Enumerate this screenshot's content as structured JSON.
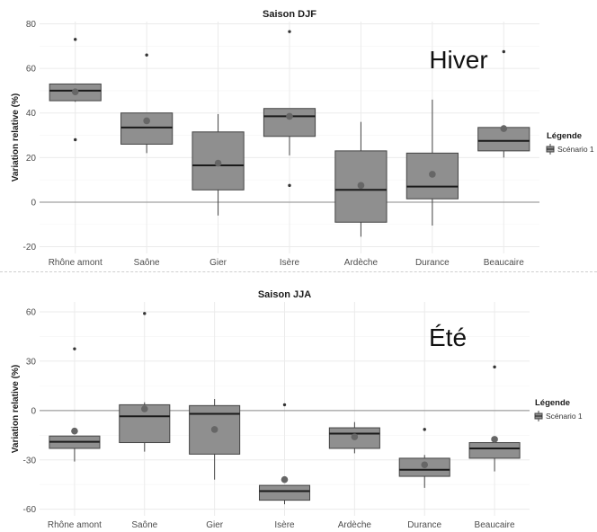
{
  "chart_data": [
    {
      "type": "box",
      "title": "Saison DJF",
      "annotation": "Hiver",
      "xlabel": "",
      "ylabel": "Variation relative (%)",
      "categories": [
        "Rhône amont",
        "Saône",
        "Gier",
        "Isère",
        "Ardèche",
        "Durance",
        "Beaucaire"
      ],
      "ylim": [
        -23,
        81
      ],
      "yticks": [
        -20,
        0,
        20,
        40,
        60,
        80
      ],
      "reference_line": 0,
      "grid": true,
      "legend": {
        "title": "Légende",
        "entries": [
          "Scénario 1"
        ],
        "position": "right"
      },
      "colors": {
        "box_fill": "#8f8f8f",
        "box_stroke": "#444444",
        "mean_point": "#666666",
        "outlier": "#333333",
        "grid": "#ebebeb",
        "zero_line": "#8a8a8a"
      },
      "series": [
        {
          "name": "Scénario 1",
          "boxes": [
            {
              "category": "Rhône amont",
              "min": 45,
              "q1": 45.5,
              "median": 50,
              "q3": 53,
              "max": 53,
              "mean": 49.5,
              "outliers": [
                73,
                28
              ]
            },
            {
              "category": "Saône",
              "min": 22,
              "q1": 26,
              "median": 33.5,
              "q3": 40,
              "max": 40,
              "mean": 36.5,
              "outliers": [
                66
              ]
            },
            {
              "category": "Gier",
              "min": -6,
              "q1": 5.5,
              "median": 16.5,
              "q3": 31.5,
              "max": 39.5,
              "mean": 17.5,
              "outliers": []
            },
            {
              "category": "Isère",
              "min": 21,
              "q1": 29.5,
              "median": 38.5,
              "q3": 42,
              "max": 42,
              "mean": 38.5,
              "outliers": [
                76.5,
                7.5
              ]
            },
            {
              "category": "Ardèche",
              "min": -15.5,
              "q1": -9,
              "median": 5.5,
              "q3": 23,
              "max": 36,
              "mean": 7.5,
              "outliers": []
            },
            {
              "category": "Durance",
              "min": -10.5,
              "q1": 1.5,
              "median": 7,
              "q3": 22,
              "max": 46,
              "mean": 12.5,
              "outliers": []
            },
            {
              "category": "Beaucaire",
              "min": 20,
              "q1": 23,
              "median": 27.5,
              "q3": 33.5,
              "max": 34.5,
              "mean": 33,
              "outliers": [
                67.5
              ]
            }
          ]
        }
      ]
    },
    {
      "type": "box",
      "title": "Saison JJA",
      "annotation": "Été",
      "xlabel": "",
      "ylabel": "Variation relative (%)",
      "categories": [
        "Rhône amont",
        "Saône",
        "Gier",
        "Isère",
        "Ardèche",
        "Durance",
        "Beaucaire"
      ],
      "ylim": [
        -64,
        66
      ],
      "yticks": [
        -60,
        -30,
        0,
        30,
        60
      ],
      "reference_line": 0,
      "grid": true,
      "legend": {
        "title": "Légende",
        "entries": [
          "Scénario 1"
        ],
        "position": "right"
      },
      "colors": {
        "box_fill": "#8f8f8f",
        "box_stroke": "#444444",
        "mean_point": "#666666",
        "outlier": "#333333",
        "grid": "#ebebeb",
        "zero_line": "#8a8a8a"
      },
      "series": [
        {
          "name": "Scénario 1",
          "boxes": [
            {
              "category": "Rhône amont",
              "min": -31,
              "q1": -23,
              "median": -19,
              "q3": -15.5,
              "max": -15.5,
              "mean": -12.5,
              "outliers": [
                37.5
              ]
            },
            {
              "category": "Saône",
              "min": -25,
              "q1": -19.5,
              "median": -3.5,
              "q3": 3.5,
              "max": 5,
              "mean": 1,
              "outliers": [
                59
              ]
            },
            {
              "category": "Gier",
              "min": -42,
              "q1": -26.5,
              "median": -2,
              "q3": 3,
              "max": 7,
              "mean": -11.5,
              "outliers": []
            },
            {
              "category": "Isère",
              "min": -57,
              "q1": -54.5,
              "median": -49,
              "q3": -45.5,
              "max": -45.5,
              "mean": -42,
              "outliers": [
                3.5
              ]
            },
            {
              "category": "Ardèche",
              "min": -26,
              "q1": -23,
              "median": -14,
              "q3": -10.5,
              "max": -7,
              "mean": -16,
              "outliers": []
            },
            {
              "category": "Durance",
              "min": -47,
              "q1": -40,
              "median": -36,
              "q3": -29,
              "max": -27,
              "mean": -33,
              "outliers": [
                -11.5
              ]
            },
            {
              "category": "Beaucaire",
              "min": -37,
              "q1": -29,
              "median": -23,
              "q3": -19.5,
              "max": -17,
              "mean": -17.5,
              "outliers": [
                26.5
              ]
            }
          ]
        }
      ]
    }
  ]
}
